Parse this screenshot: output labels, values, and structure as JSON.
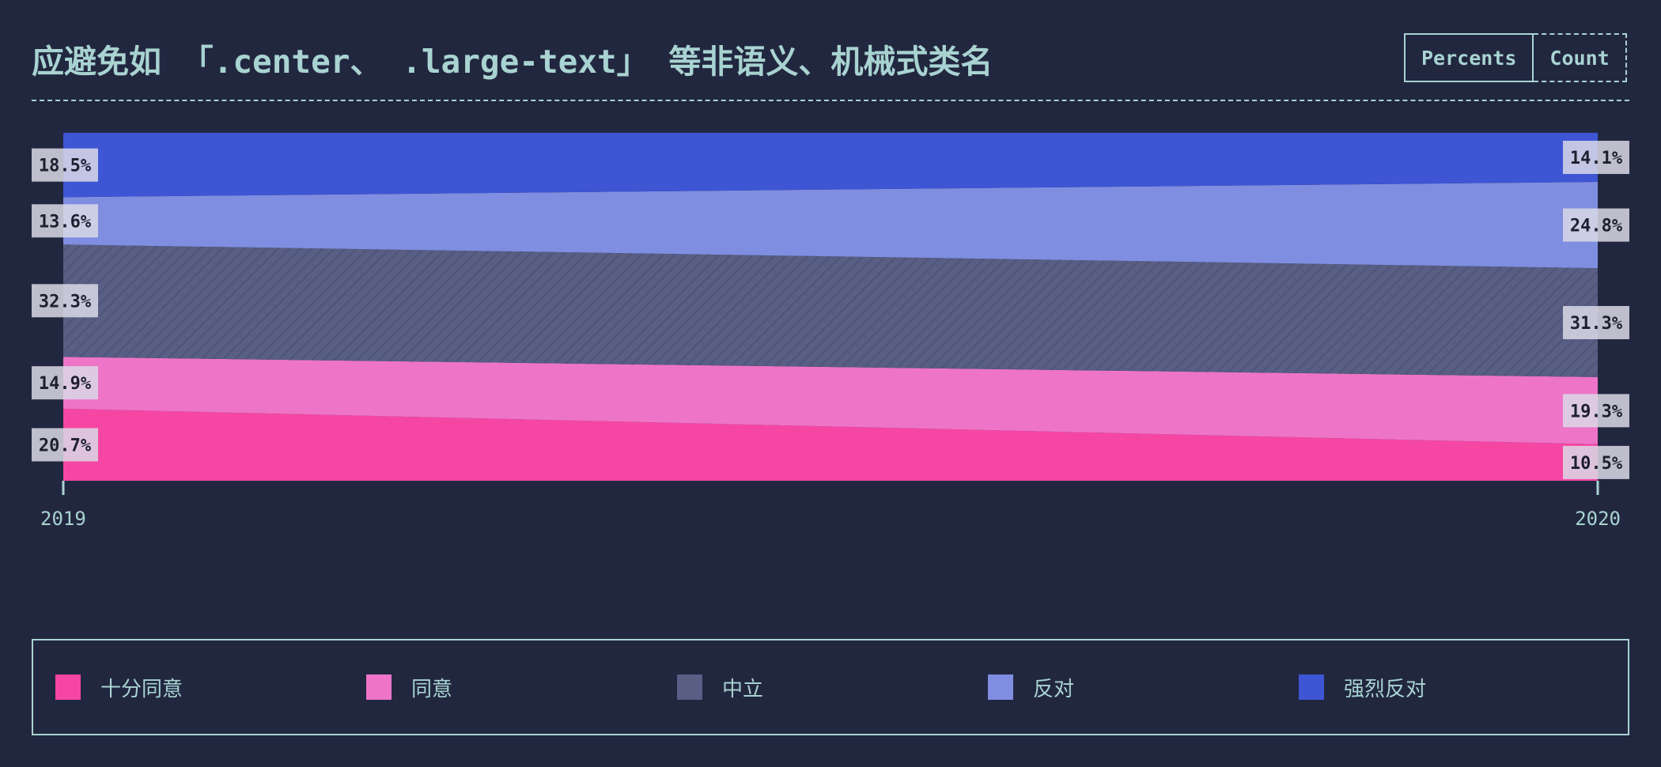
{
  "title": "应避免如 「.center、 .large-text」 等非语义、机械式类名",
  "toggle": {
    "percents_label": "Percents",
    "count_label": "Count",
    "active": "Percents"
  },
  "chart_data": {
    "type": "area",
    "stacked": true,
    "normalized": true,
    "x": [
      "2019",
      "2020"
    ],
    "series": [
      {
        "name": "十分同意",
        "values": [
          20.7,
          10.5
        ],
        "color": "#f646a3",
        "labels": [
          "20.7%",
          "10.5%"
        ]
      },
      {
        "name": "同意",
        "values": [
          14.9,
          19.3
        ],
        "color": "#ee74c8",
        "labels": [
          "14.9%",
          "19.3%"
        ]
      },
      {
        "name": "中立",
        "values": [
          32.3,
          31.3
        ],
        "color": "#585e84",
        "pattern": "diagonal-hatch",
        "labels": [
          "32.3%",
          "31.3%"
        ]
      },
      {
        "name": "反对",
        "values": [
          13.6,
          24.8
        ],
        "color": "#7f8ee0",
        "labels": [
          "13.6%",
          "24.8%"
        ]
      },
      {
        "name": "强烈反对",
        "values": [
          18.5,
          14.1
        ],
        "color": "#3e55d4",
        "labels": [
          "18.5%",
          "14.1%"
        ]
      }
    ],
    "ylim": [
      0,
      100
    ],
    "legend_position": "bottom",
    "grid": false
  },
  "colors": {
    "background": "#222740",
    "foreground": "#a8d3d1",
    "label_box": "#d9d9e6"
  }
}
